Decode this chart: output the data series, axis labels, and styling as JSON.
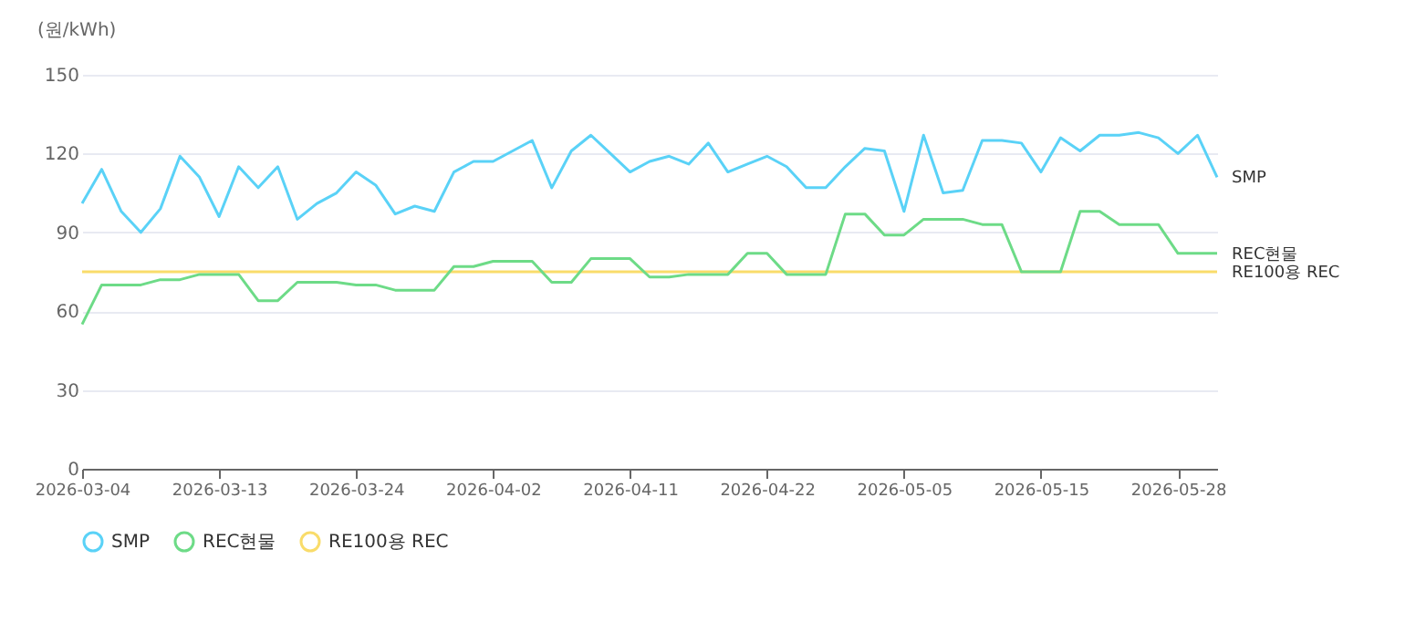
{
  "chart_data": {
    "type": "line",
    "ylabel": "(원/kWh)",
    "categories": [
      "2026-03-04",
      null,
      null,
      null,
      null,
      null,
      null,
      "2026-03-13",
      null,
      null,
      null,
      null,
      null,
      null,
      "2026-03-24",
      null,
      null,
      null,
      null,
      null,
      null,
      "2026-04-02",
      null,
      null,
      null,
      null,
      null,
      null,
      "2026-04-11",
      null,
      null,
      null,
      null,
      null,
      null,
      "2026-04-22",
      null,
      null,
      null,
      null,
      null,
      null,
      "2026-05-05",
      null,
      null,
      null,
      null,
      null,
      null,
      "2026-05-15",
      null,
      null,
      null,
      null,
      null,
      null,
      "2026-05-28",
      null,
      null
    ],
    "series": [
      {
        "name": "SMP",
        "color": "#5ad2f7",
        "values": [
          101,
          114,
          98,
          90,
          99,
          119,
          111,
          96,
          115,
          107,
          115,
          95,
          101,
          105,
          113,
          108,
          97,
          100,
          98,
          113,
          117,
          117,
          121,
          125,
          107,
          121,
          127,
          120,
          113,
          117,
          119,
          116,
          124,
          113,
          116,
          119,
          115,
          107,
          107,
          115,
          122,
          121,
          98,
          127,
          105,
          106,
          125,
          125,
          124,
          113,
          126,
          121,
          127,
          127,
          128,
          126,
          120,
          127,
          111
        ]
      },
      {
        "name": "REC현물",
        "color": "#6ddb87",
        "values": [
          55,
          70,
          70,
          70,
          72,
          72,
          74,
          74,
          74,
          64,
          64,
          71,
          71,
          71,
          70,
          70,
          68,
          68,
          68,
          77,
          77,
          79,
          79,
          79,
          71,
          71,
          80,
          80,
          80,
          73,
          73,
          74,
          74,
          74,
          82,
          82,
          74,
          74,
          74,
          97,
          97,
          89,
          89,
          95,
          95,
          95,
          93,
          93,
          75,
          75,
          75,
          98,
          98,
          93,
          93,
          93,
          82,
          82,
          82
        ]
      },
      {
        "name": "RE100용 REC",
        "color": "#f9dc6a",
        "values": [
          75,
          75,
          75,
          75,
          75,
          75,
          75,
          75,
          75,
          75,
          75,
          75,
          75,
          75,
          75,
          75,
          75,
          75,
          75,
          75,
          75,
          75,
          75,
          75,
          75,
          75,
          75,
          75,
          75,
          75,
          75,
          75,
          75,
          75,
          75,
          75,
          75,
          75,
          75,
          75,
          75,
          75,
          75,
          75,
          75,
          75,
          75,
          75,
          75,
          75,
          75,
          75,
          75,
          75,
          75,
          75,
          75,
          75,
          75
        ]
      }
    ],
    "ylim": [
      0,
      150
    ],
    "yticks": [
      0,
      30,
      60,
      90,
      120,
      150
    ],
    "grid": "y",
    "legend": "bottom",
    "marker": "none",
    "line_style": "solid"
  }
}
